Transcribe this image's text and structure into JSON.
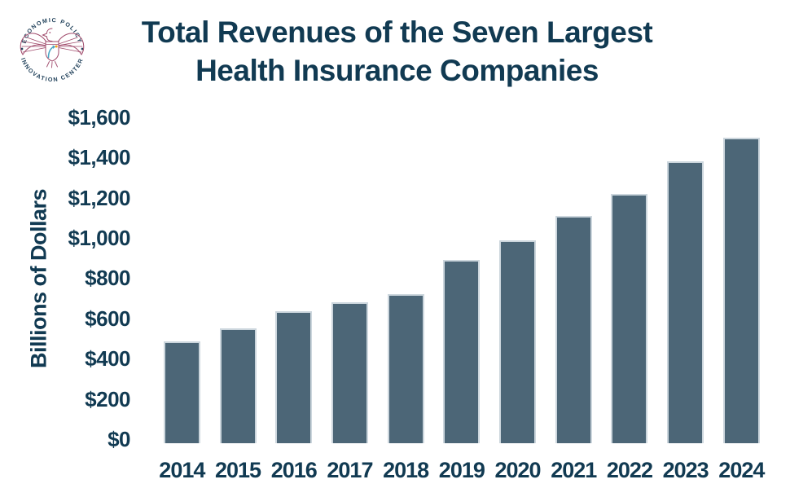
{
  "theme": {
    "navy": "#113a52",
    "ring_navy": "#1c3d57",
    "maroon": "#a04a6b",
    "teal": "#4aa6c4",
    "orange": "#f6a21d",
    "bar_fill": "#4c6677",
    "bar_border": "#ccd6dd",
    "background": "#ffffff"
  },
  "logo": {
    "name": "Economic Policy Innovation Center emblem",
    "arc_top": "ECONOMIC POLICY",
    "arc_bottom": "INNOVATION CENTER"
  },
  "header": {
    "title_line1": "Total Revenues of the Seven Largest",
    "title_line2": "Health Insurance Companies"
  },
  "chart_data": {
    "type": "bar",
    "title": "Total Revenues of the Seven Largest Health Insurance Companies",
    "xlabel": "",
    "ylabel": "Billions of Dollars",
    "categories": [
      "2014",
      "2015",
      "2016",
      "2017",
      "2018",
      "2019",
      "2020",
      "2021",
      "2022",
      "2023",
      "2024"
    ],
    "values": [
      505,
      570,
      655,
      700,
      740,
      910,
      1010,
      1130,
      1240,
      1400,
      1520
    ],
    "ylim": [
      0,
      1600
    ],
    "y_tick_step": 200,
    "y_tick_labels": [
      "$0",
      "$200",
      "$400",
      "$600",
      "$800",
      "$1,000",
      "$1,200",
      "$1,400",
      "$1,600"
    ],
    "grid": false,
    "legend": null,
    "axis_lines": false
  }
}
